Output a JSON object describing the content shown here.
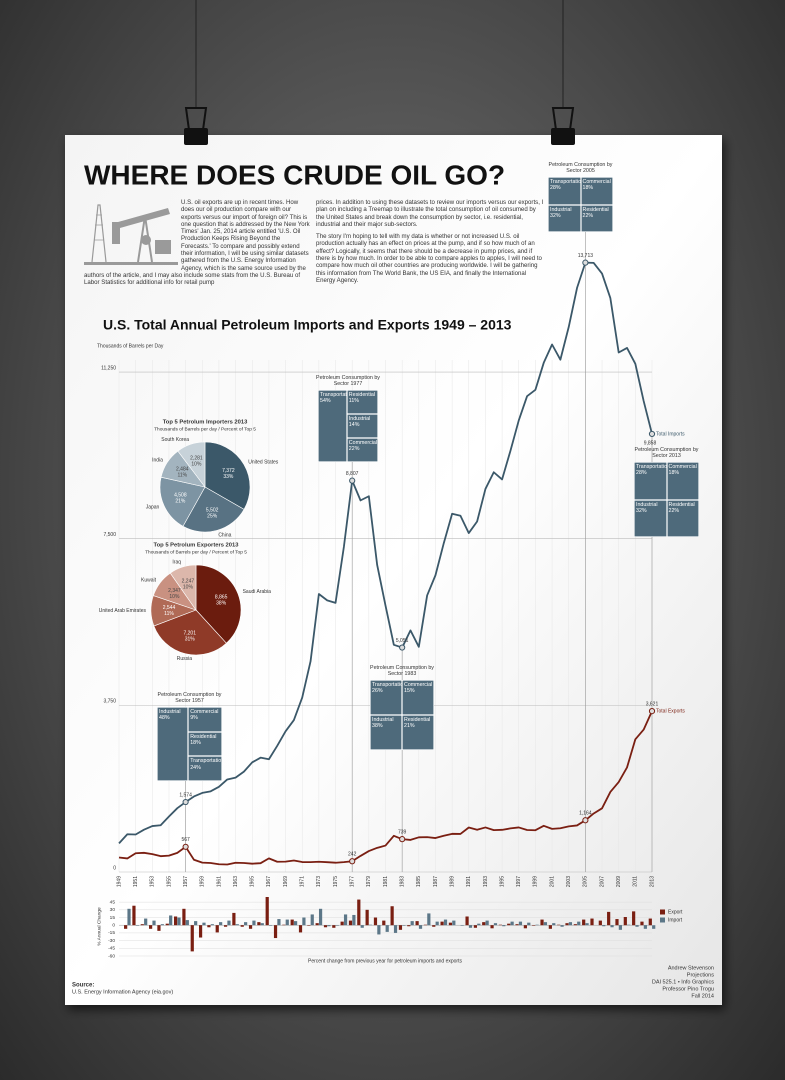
{
  "poster": {
    "title": "WHERE DOES CRUDE OIL GO?",
    "intro_left": "U.S. oil exports are up in recent times. How does our oil production compare with our exports versus our import of foreign oil? This is one question that is addressed by the New York Times' Jan. 25, 2014 article entitled 'U.S. Oil Production Keeps Rising Beyond the Forecasts.' To compare and possibly extend their information, I will be using similar datasets gathered from the U.S. Energy Information Agency, which is the same source used by the authors of the article, and I may also include some stats from the U.S. Bureau of Labor Statistics for additional info for retail pump",
    "intro_right": [
      "prices. In addition to using these datasets to review our imports versus our exports, I plan on including a Treemap to illustrate the total consumption of oil consumed by the United States and break down the consumption by sector, i.e. residential, industrial and their major sub-sectors.",
      "The story I'm hoping to tell with my data is whether or not increased U.S. oil production actually has an effect on prices at the pump, and if so how much of an effect? Logically, it seems that there should be a decrease in pump prices, and if there is by how much. In order to be able to compare apples to apples, I will need to compare how much oil other countries are producing worldwide. I will be gathering this information from The World Bank, the US EIA, and finally the International Energy Agency."
    ],
    "source_label": "Source:",
    "source": "U.S. Energy Information Agency (eia.gov)",
    "credits": [
      "Andrew Stevenson",
      "Projections",
      "DAI 525.1 • Info Graphics",
      "Professor Pino Trogu",
      "Fall 2014"
    ]
  },
  "chart_data": [
    {
      "type": "line",
      "title": "U.S. Total Annual Petroleum Imports and Exports 1949 – 2013",
      "y_label": "Thousands of Barrels per Day",
      "x": [
        1949,
        1950,
        1951,
        1952,
        1953,
        1954,
        1955,
        1956,
        1957,
        1958,
        1959,
        1960,
        1961,
        1962,
        1963,
        1964,
        1965,
        1966,
        1967,
        1968,
        1969,
        1970,
        1971,
        1972,
        1973,
        1974,
        1975,
        1976,
        1977,
        1978,
        1979,
        1980,
        1981,
        1982,
        1983,
        1984,
        1985,
        1986,
        1987,
        1988,
        1989,
        1990,
        1991,
        1992,
        1993,
        1994,
        1995,
        1996,
        1997,
        1998,
        1999,
        2000,
        2001,
        2002,
        2003,
        2004,
        2005,
        2006,
        2007,
        2008,
        2009,
        2010,
        2011,
        2012,
        2013
      ],
      "xlim": [
        1949,
        2013
      ],
      "xticks": [
        1949,
        1951,
        1953,
        1955,
        1957,
        1959,
        1961,
        1963,
        1965,
        1967,
        1969,
        1971,
        1973,
        1975,
        1977,
        1979,
        1981,
        1983,
        1985,
        1987,
        1989,
        1991,
        1993,
        1995,
        1997,
        1999,
        2001,
        2003,
        2005,
        2007,
        2009,
        2011,
        2013
      ],
      "ylim": [
        0,
        13750
      ],
      "yticks": [
        0,
        {
          "value": 3750,
          "label": "3,750"
        },
        {
          "value": 7500,
          "label": "7,500"
        },
        {
          "value": 11250,
          "label": "11,250"
        }
      ],
      "grid": true,
      "series": [
        {
          "name": "Total Imports",
          "color": "#3b5869",
          "values": [
            645,
            850,
            844,
            952,
            1034,
            1052,
            1248,
            1436,
            1574,
            1700,
            1780,
            1815,
            1917,
            2082,
            2123,
            2259,
            2468,
            2573,
            2537,
            2840,
            3166,
            3419,
            3926,
            4741,
            6256,
            6112,
            6056,
            7313,
            8807,
            8363,
            8456,
            6909,
            5996,
            5113,
            5051,
            5437,
            5067,
            6224,
            6678,
            7402,
            8061,
            8018,
            7627,
            7888,
            8620,
            8996,
            8835,
            9478,
            10162,
            10708,
            10852,
            11459,
            11871,
            11530,
            12264,
            13145,
            13713,
            13707,
            13468,
            12915,
            11691,
            11793,
            11436,
            10598,
            9858
          ],
          "value_labels": [
            null,
            null,
            null,
            null,
            null,
            null,
            null,
            null,
            "1,574",
            null,
            null,
            null,
            null,
            null,
            null,
            null,
            null,
            null,
            null,
            null,
            null,
            null,
            null,
            null,
            null,
            null,
            null,
            null,
            "8,807",
            null,
            null,
            null,
            null,
            null,
            "5,051",
            null,
            null,
            null,
            null,
            null,
            null,
            null,
            null,
            null,
            null,
            null,
            null,
            null,
            null,
            null,
            null,
            null,
            null,
            null,
            null,
            null,
            "13,713",
            null,
            null,
            null,
            null,
            null,
            null,
            null,
            "9,858"
          ]
        },
        {
          "name": "Total Exports",
          "color": "#7a1f12",
          "values": [
            327,
            305,
            422,
            432,
            402,
            356,
            368,
            430,
            567,
            276,
            211,
            202,
            174,
            168,
            208,
            202,
            187,
            198,
            307,
            231,
            233,
            259,
            224,
            222,
            231,
            221,
            209,
            223,
            242,
            362,
            471,
            544,
            595,
            815,
            739,
            722,
            781,
            785,
            764,
            815,
            859,
            857,
            1001,
            950,
            1003,
            942,
            949,
            981,
            1003,
            945,
            940,
            1040,
            971,
            984,
            1027,
            1048,
            1164,
            1317,
            1433,
            1802,
            2024,
            2353,
            2986,
            3205,
            3621
          ],
          "value_labels": [
            null,
            null,
            null,
            null,
            null,
            null,
            null,
            null,
            "567",
            null,
            null,
            null,
            null,
            null,
            null,
            null,
            null,
            null,
            null,
            null,
            null,
            null,
            null,
            null,
            null,
            null,
            null,
            null,
            "242",
            null,
            null,
            null,
            null,
            null,
            "739",
            null,
            null,
            null,
            null,
            null,
            null,
            null,
            null,
            null,
            null,
            null,
            null,
            null,
            null,
            null,
            null,
            null,
            null,
            null,
            null,
            null,
            "1,164",
            null,
            null,
            null,
            null,
            null,
            null,
            null,
            "3,621"
          ]
        }
      ]
    },
    {
      "type": "pie",
      "title": "Top 5 Petrolum Importers 2013",
      "subtitle": "Thousands of Barrels per day / Percent of Top 5",
      "categories": [
        "United States",
        "China",
        "Japan",
        "India",
        "South Korea"
      ],
      "values": [
        7372,
        5502,
        4508,
        2484,
        2281
      ],
      "value_labels": [
        "7,372",
        "5,502",
        "4,508",
        "2,484",
        "2,281"
      ],
      "percents": [
        33,
        25,
        21,
        11,
        10
      ],
      "percent_labels": [
        "33%",
        "25%",
        "21%",
        "11%",
        "10%"
      ],
      "colors": [
        "#3b5869",
        "#587283",
        "#7d94a3",
        "#a3b4bf",
        "#c7d2d9"
      ]
    },
    {
      "type": "pie",
      "title": "Top 5 Petrolum Exporters 2013",
      "subtitle": "Thousands of Barrels per day / Percent of Top 5",
      "categories": [
        "Saudi Arabia",
        "Russia",
        "United Arab Emirates",
        "Kuwait",
        "Iraq"
      ],
      "values": [
        8865,
        7201,
        2544,
        2347,
        2247
      ],
      "value_labels": [
        "8,865",
        "7,201",
        "2,544",
        "2,347",
        "2,247"
      ],
      "percents": [
        38,
        31,
        11,
        10,
        10
      ],
      "percent_labels": [
        "38%",
        "31%",
        "11%",
        "10%",
        "10%"
      ],
      "colors": [
        "#6b1c0e",
        "#8f3a28",
        "#b06a56",
        "#c99181",
        "#dcb7ab"
      ]
    },
    {
      "type": "bar",
      "y_label": "% Annual Change",
      "caption": "Percent change from previous year for petroleum imports and exports",
      "x": [
        1950,
        1951,
        1952,
        1953,
        1954,
        1955,
        1956,
        1957,
        1958,
        1959,
        1960,
        1961,
        1962,
        1963,
        1964,
        1965,
        1966,
        1967,
        1968,
        1969,
        1970,
        1971,
        1972,
        1973,
        1974,
        1975,
        1976,
        1977,
        1978,
        1979,
        1980,
        1981,
        1982,
        1983,
        1984,
        1985,
        1986,
        1987,
        1988,
        1989,
        1990,
        1991,
        1992,
        1993,
        1994,
        1995,
        1996,
        1997,
        1998,
        1999,
        2000,
        2001,
        2002,
        2003,
        2004,
        2005,
        2006,
        2007,
        2008,
        2009,
        2010,
        2011,
        2012,
        2013
      ],
      "xlim": [
        1949,
        2013
      ],
      "ylim": [
        -60,
        55
      ],
      "yticks": [
        45,
        30,
        15,
        0,
        -15,
        -30,
        -45,
        -60
      ],
      "grid": true,
      "legend": "right",
      "series": [
        {
          "name": "Export",
          "color": "#7a1f12",
          "values": [
            -7,
            38,
            2,
            -7,
            -11,
            3,
            17,
            32,
            -51,
            -24,
            -4,
            -14,
            -3,
            24,
            -3,
            -7,
            6,
            55,
            -25,
            1,
            11,
            -14,
            -1,
            4,
            -4,
            -5,
            7,
            9,
            50,
            30,
            15,
            9,
            37,
            -9,
            -2,
            8,
            1,
            -3,
            7,
            5,
            0,
            17,
            -5,
            6,
            -6,
            1,
            3,
            2,
            -6,
            -1,
            11,
            -7,
            1,
            4,
            2,
            11,
            13,
            9,
            26,
            12,
            16,
            27,
            7,
            13
          ]
        },
        {
          "name": "Import",
          "color": "#5c7788",
          "values": [
            32,
            -1,
            13,
            9,
            2,
            19,
            15,
            10,
            8,
            5,
            2,
            6,
            9,
            2,
            6,
            9,
            4,
            -1,
            12,
            11,
            8,
            15,
            21,
            32,
            -2,
            -1,
            21,
            20,
            -5,
            1,
            -18,
            -13,
            -15,
            -1,
            8,
            -7,
            23,
            7,
            11,
            9,
            -1,
            -5,
            3,
            9,
            4,
            -2,
            7,
            7,
            5,
            1,
            6,
            4,
            -3,
            6,
            7,
            4,
            0,
            -2,
            -4,
            -9,
            1,
            -3,
            -7,
            -7
          ]
        }
      ]
    }
  ],
  "callouts": [
    {
      "title": "Petroleum Consumption by Sector 1957",
      "year": 1957,
      "cells": [
        {
          "label": "Industrial",
          "value": "48%"
        },
        {
          "label": "Commercial",
          "value": "9%"
        },
        {
          "label": "Residential",
          "value": "18%"
        },
        {
          "label": "Transportation",
          "value": "24%"
        }
      ]
    },
    {
      "title": "Petroleum Consumption by Sector 1977",
      "year": 1977,
      "cells": [
        {
          "label": "Transportation",
          "value": "54%"
        },
        {
          "label": "Residential",
          "value": "11%"
        },
        {
          "label": "Industrial",
          "value": "14%"
        },
        {
          "label": "Commercial",
          "value": "22%"
        }
      ]
    },
    {
      "title": "Petroleum Consumption by Sector 1983",
      "year": 1983,
      "cells": [
        {
          "label": "Transportation",
          "value": "26%"
        },
        {
          "label": "Commercial",
          "value": "15%"
        },
        {
          "label": "Industrial",
          "value": "38%"
        },
        {
          "label": "Residential",
          "value": "21%"
        }
      ]
    },
    {
      "title": "Petroleum Consumption by Sector 2005",
      "year": 2005,
      "cells": [
        {
          "label": "Transportation",
          "value": "28%"
        },
        {
          "label": "Commercial",
          "value": "18%"
        },
        {
          "label": "Industrial",
          "value": "32%"
        },
        {
          "label": "Residential",
          "value": "22%"
        }
      ]
    },
    {
      "title": "Petroleum Consumption by Sector 2013",
      "year": 2013,
      "cells": [
        {
          "label": "Transportation",
          "value": "28%"
        },
        {
          "label": "Commercial",
          "value": "18%"
        },
        {
          "label": "Industrial",
          "value": "32%"
        },
        {
          "label": "Residential",
          "value": "22%"
        }
      ]
    }
  ]
}
